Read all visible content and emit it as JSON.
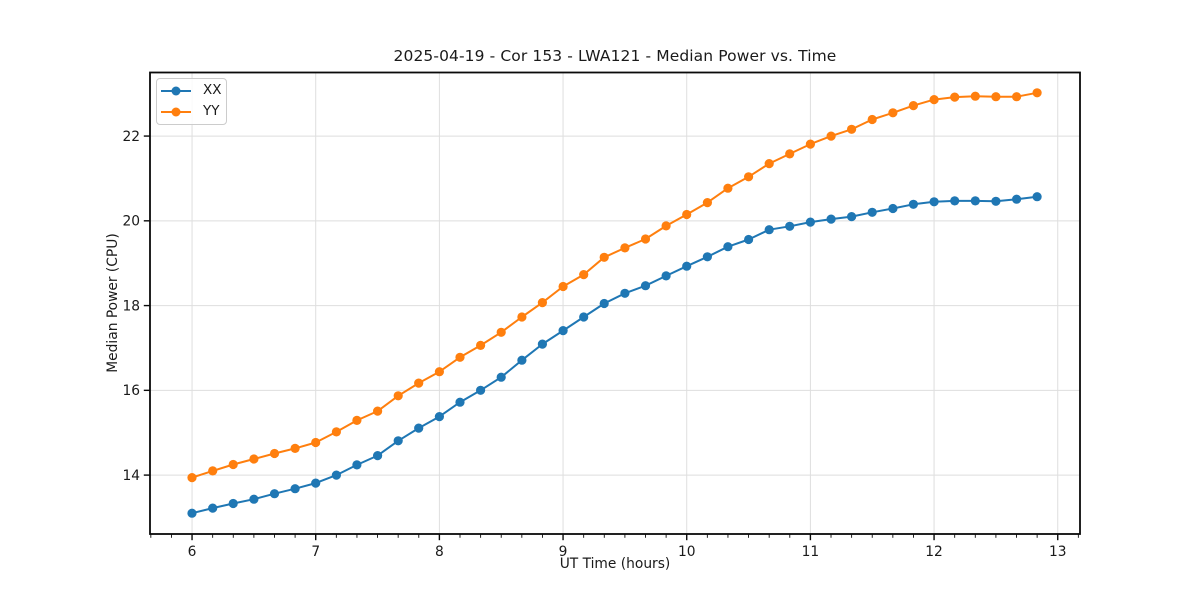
{
  "chart_data": {
    "type": "line",
    "title": "2025-04-19 - Cor 153 - LWA121 - Median Power vs. Time",
    "xlabel": "UT Time (hours)",
    "ylabel": "Median Power (CPU)",
    "xlim": [
      5.66,
      13.18
    ],
    "ylim": [
      12.61,
      23.5
    ],
    "xticks": [
      6,
      7,
      8,
      9,
      10,
      11,
      12,
      13
    ],
    "yticks": [
      14,
      16,
      18,
      20,
      22
    ],
    "x_minor_per_major": 6,
    "grid": true,
    "grid_color": "#dedede",
    "legend_position": "upper left",
    "x": [
      6.0,
      6.167,
      6.333,
      6.5,
      6.667,
      6.833,
      7.0,
      7.167,
      7.333,
      7.5,
      7.667,
      7.833,
      8.0,
      8.167,
      8.333,
      8.5,
      8.667,
      8.833,
      9.0,
      9.167,
      9.333,
      9.5,
      9.667,
      9.833,
      10.0,
      10.167,
      10.333,
      10.5,
      10.667,
      10.833,
      11.0,
      11.167,
      11.333,
      11.5,
      11.667,
      11.833,
      12.0,
      12.167,
      12.333,
      12.5,
      12.667,
      12.833
    ],
    "series": [
      {
        "name": "XX",
        "color": "#1f77b4",
        "marker": "circle",
        "values": [
          13.1,
          13.22,
          13.33,
          13.43,
          13.56,
          13.68,
          13.81,
          14.0,
          14.24,
          14.46,
          14.81,
          15.11,
          15.38,
          15.72,
          16.0,
          16.31,
          16.71,
          17.09,
          17.41,
          17.73,
          18.05,
          18.29,
          18.47,
          18.7,
          18.93,
          19.15,
          19.39,
          19.56,
          19.79,
          19.87,
          19.97,
          20.04,
          20.1,
          20.2,
          20.29,
          20.39,
          20.45,
          20.47,
          20.47,
          20.46,
          20.51,
          20.57
        ]
      },
      {
        "name": "YY",
        "color": "#ff7f0e",
        "marker": "circle",
        "values": [
          13.94,
          14.1,
          14.25,
          14.38,
          14.51,
          14.63,
          14.77,
          15.02,
          15.29,
          15.51,
          15.87,
          16.17,
          16.44,
          16.78,
          17.06,
          17.37,
          17.73,
          18.07,
          18.45,
          18.73,
          19.14,
          19.36,
          19.57,
          19.88,
          20.15,
          20.43,
          20.77,
          21.04,
          21.35,
          21.58,
          21.81,
          22.0,
          22.16,
          22.39,
          22.55,
          22.72,
          22.86,
          22.92,
          22.94,
          22.93,
          22.93,
          23.02
        ]
      }
    ]
  }
}
